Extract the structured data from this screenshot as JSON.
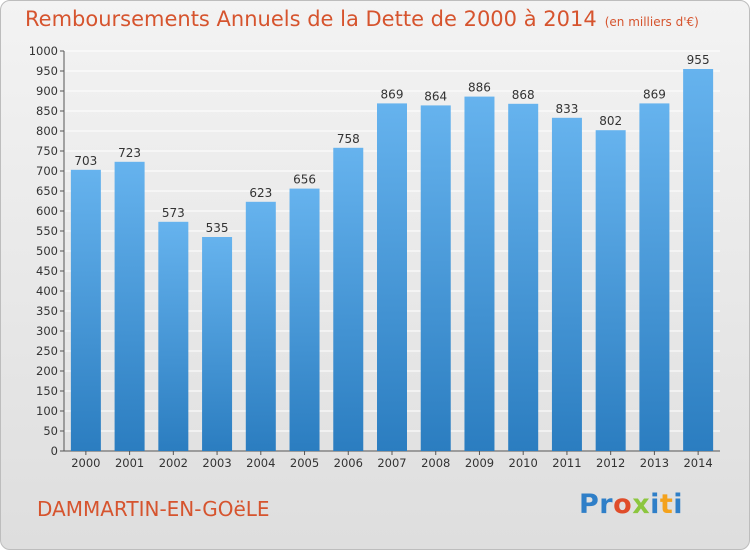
{
  "header": {
    "title": "Remboursements Annuels de la Dette de 2000 à 2014",
    "unit": "(en milliers d'€)"
  },
  "footer": {
    "city": "DAMMARTIN-EN-GOëLE",
    "logo": "Proxiti",
    "logo_colors": [
      "#2f7fc8",
      "#2f7fc8",
      "#e04d2a",
      "#8cc63f",
      "#2f7fc8",
      "#f4a21c",
      "#2f7fc8"
    ]
  },
  "colors": {
    "title": "#d6542e",
    "bar_light": "#66b3ee",
    "bar_dark": "#2b7dc0",
    "grid": "#ffffff",
    "axis": "#555555",
    "text": "#333333"
  },
  "chart_data": {
    "type": "bar",
    "title": "Remboursements Annuels de la Dette de 2000 à 2014",
    "subtitle": "(en milliers d'€)",
    "categories": [
      "2000",
      "2001",
      "2002",
      "2003",
      "2004",
      "2005",
      "2006",
      "2007",
      "2008",
      "2009",
      "2010",
      "2011",
      "2012",
      "2013",
      "2014"
    ],
    "values": [
      703,
      723,
      573,
      535,
      623,
      656,
      758,
      869,
      864,
      886,
      868,
      833,
      802,
      869,
      955
    ],
    "ylim": [
      0,
      1000
    ],
    "ytick_step": 50,
    "grid": true,
    "data_labels": true
  }
}
